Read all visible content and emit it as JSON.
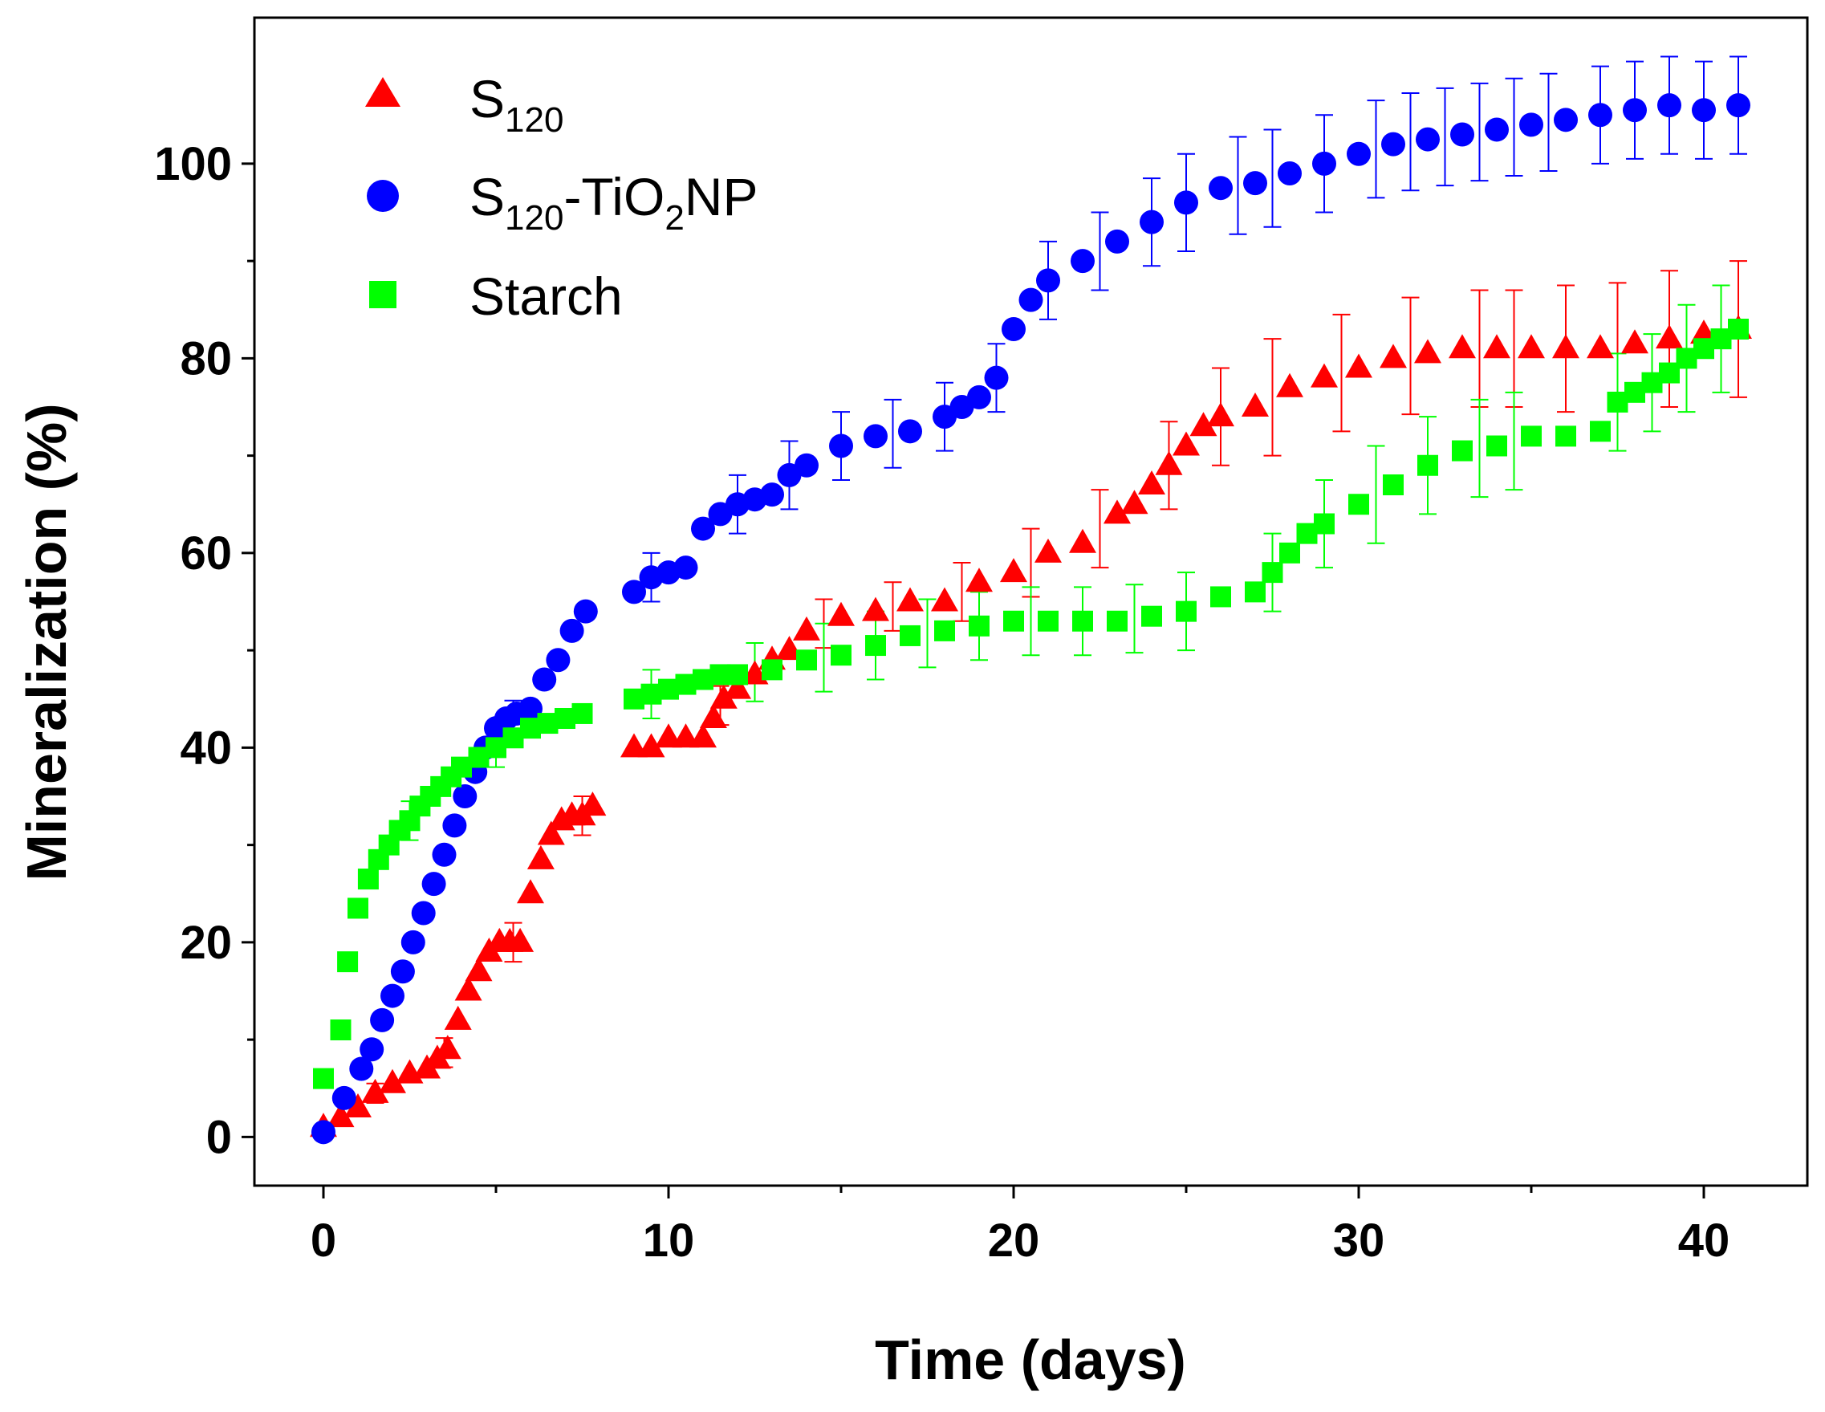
{
  "chart_data": {
    "type": "scatter",
    "title": "",
    "xlabel": "Time (days)",
    "ylabel": "Mineralization (%)",
    "xlim": [
      -2,
      43
    ],
    "ylim": [
      -5,
      115
    ],
    "xticks": [
      0,
      10,
      20,
      30,
      40
    ],
    "yticks": [
      0,
      20,
      40,
      60,
      80,
      100
    ],
    "x_tick_labels": [
      "0",
      "10",
      "20",
      "30",
      "40"
    ],
    "y_tick_labels": [
      "0",
      "20",
      "40",
      "60",
      "80",
      "100"
    ],
    "grid": false,
    "legend_position": "top-left",
    "series": [
      {
        "name": "S120",
        "legend_main": "S",
        "legend_sub": "120",
        "color": "#ff0000",
        "marker": "triangle",
        "x": [
          0,
          0.5,
          1,
          1.5,
          2,
          2.5,
          3,
          3.3,
          3.6,
          3.9,
          4.2,
          4.5,
          4.8,
          5.1,
          5.4,
          5.7,
          6,
          6.3,
          6.6,
          6.9,
          7.2,
          7.5,
          7.8,
          9,
          9.5,
          10,
          10.5,
          11,
          11.3,
          11.6,
          12,
          12.5,
          13,
          13.5,
          14,
          15,
          16,
          17,
          18,
          19,
          20,
          21,
          22,
          23,
          23.5,
          24,
          24.5,
          25,
          25.5,
          26,
          27,
          28,
          29,
          30,
          31,
          32,
          33,
          34,
          35,
          36,
          37,
          38,
          39,
          40,
          41
        ],
        "y": [
          1,
          2,
          3,
          4.5,
          5.5,
          6.5,
          7,
          8,
          9,
          12,
          15,
          17,
          19,
          20,
          20,
          20,
          25,
          28.5,
          31,
          32.5,
          33,
          33,
          34,
          40,
          40,
          41,
          41,
          41,
          43,
          45,
          46,
          47.5,
          49,
          50,
          52,
          53.5,
          54,
          55,
          55,
          57,
          58,
          60,
          61,
          64,
          65,
          67,
          69,
          71,
          73,
          74,
          75,
          77,
          78,
          79,
          80,
          80.5,
          81,
          81,
          81,
          81,
          81,
          81.5,
          82,
          82.5,
          83
        ],
        "error_x": [
          1.5,
          3.5,
          5.5,
          7.5,
          11.5,
          14.5,
          16.5,
          18.5,
          20.5,
          22.5,
          24.5,
          26,
          27.5,
          29.5,
          31.5,
          33.5,
          34.5,
          36,
          37.5,
          39,
          41
        ],
        "error_y": [
          1,
          1.5,
          2,
          2,
          2,
          2.5,
          2.5,
          3,
          3.5,
          4,
          4.5,
          5,
          6,
          6,
          6,
          6,
          6,
          6.5,
          6.5,
          7,
          7
        ]
      },
      {
        "name": "S120-TiO2NP",
        "legend_main": "S",
        "legend_sub": "120",
        "legend_rest": "-TiO",
        "legend_sub2": "2",
        "legend_end": "NP",
        "color": "#0000ff",
        "marker": "circle",
        "x": [
          0,
          0.6,
          1.1,
          1.4,
          1.7,
          2,
          2.3,
          2.6,
          2.9,
          3.2,
          3.5,
          3.8,
          4.1,
          4.4,
          4.7,
          5,
          5.3,
          5.6,
          6,
          6.4,
          6.8,
          7.2,
          7.6,
          9,
          9.5,
          10,
          10.5,
          11,
          11.5,
          12,
          12.5,
          13,
          13.5,
          14,
          15,
          16,
          17,
          18,
          18.5,
          19,
          19.5,
          20,
          20.5,
          21,
          22,
          23,
          24,
          25,
          26,
          27,
          28,
          29,
          30,
          31,
          32,
          33,
          34,
          35,
          36,
          37,
          38,
          39,
          40,
          41
        ],
        "y": [
          0.5,
          4,
          7,
          9,
          12,
          14.5,
          17,
          20,
          23,
          26,
          29,
          32,
          35,
          37.5,
          40,
          42,
          43,
          43.5,
          44,
          47,
          49,
          52,
          54,
          56,
          57.5,
          58,
          58.5,
          62.5,
          64,
          65,
          65.5,
          66,
          68,
          69,
          71,
          72,
          72.5,
          74,
          75,
          76,
          78,
          83,
          86,
          88,
          90,
          92,
          94,
          96,
          97.5,
          98,
          99,
          100,
          101,
          102,
          102.5,
          103,
          103.5,
          104,
          104.5,
          105,
          105.5,
          106,
          105.5,
          106
        ],
        "error_x": [
          5.5,
          9.5,
          12,
          13.5,
          15,
          16.5,
          18,
          19.5,
          21,
          22.5,
          24,
          25,
          26.5,
          27.5,
          29,
          30.5,
          31.5,
          32.5,
          33.5,
          34.5,
          35.5,
          37,
          38,
          39,
          40,
          41
        ],
        "error_y": [
          1.5,
          2.5,
          3,
          3.5,
          3.5,
          3.5,
          3.5,
          3.5,
          4,
          4,
          4.5,
          5,
          5,
          5,
          5,
          5,
          5,
          5,
          5,
          5,
          5,
          5,
          5,
          5,
          5,
          5
        ]
      },
      {
        "name": "Starch",
        "legend_main": "Starch",
        "color": "#00ff00",
        "marker": "square",
        "x": [
          0,
          0.5,
          0.7,
          1,
          1.3,
          1.6,
          1.9,
          2.2,
          2.5,
          2.8,
          3.1,
          3.4,
          3.7,
          4,
          4.5,
          5,
          5.5,
          6,
          6.5,
          7,
          7.5,
          9,
          9.5,
          10,
          10.5,
          11,
          11.5,
          12,
          13,
          14,
          15,
          16,
          17,
          18,
          19,
          20,
          21,
          22,
          23,
          24,
          25,
          26,
          27,
          27.5,
          28,
          28.5,
          29,
          30,
          31,
          32,
          33,
          34,
          35,
          36,
          37,
          37.5,
          38,
          38.5,
          39,
          39.5,
          40,
          40.5,
          41
        ],
        "y": [
          6,
          11,
          18,
          23.5,
          26.5,
          28.5,
          30,
          31.5,
          32.5,
          34,
          35,
          36,
          37,
          38,
          39,
          40,
          41,
          42,
          42.5,
          43,
          43.5,
          45,
          45.5,
          46,
          46.5,
          47,
          47.5,
          47.5,
          48,
          49,
          49.5,
          50.5,
          51.5,
          52,
          52.5,
          53,
          53,
          53,
          53,
          53.5,
          54,
          55.5,
          56,
          58,
          60,
          62,
          63,
          65,
          67,
          69,
          70.5,
          71,
          72,
          72,
          72.5,
          75.5,
          76.5,
          77.5,
          78.5,
          80,
          81,
          82,
          83
        ],
        "error_x": [
          2.5,
          5,
          9.5,
          12.5,
          14.5,
          16,
          17.5,
          19,
          20.5,
          22,
          23.5,
          25,
          27.5,
          29,
          30.5,
          32,
          33.5,
          34.5,
          37.5,
          38.5,
          39.5,
          40.5
        ],
        "error_y": [
          2,
          2,
          2.5,
          3,
          3.5,
          3.5,
          3.5,
          3.5,
          3.5,
          3.5,
          3.5,
          4,
          4,
          4.5,
          5,
          5,
          5,
          5,
          5,
          5,
          5.5,
          5.5
        ]
      }
    ]
  }
}
